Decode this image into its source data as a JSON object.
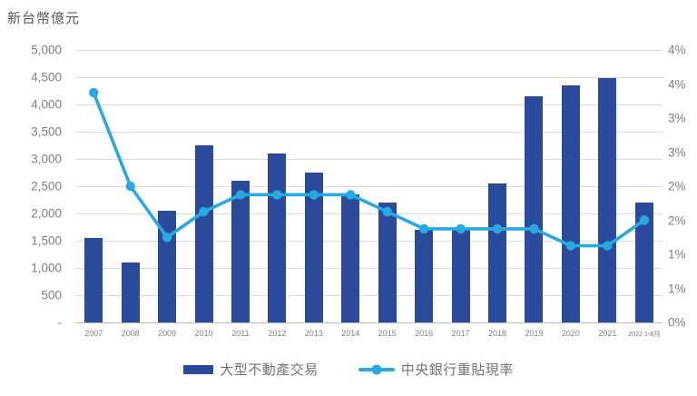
{
  "colors": {
    "bar": "#2a4b9b",
    "line": "#29a9e1",
    "gridline": "#d9d9d9",
    "axis_line": "#b7b7b7",
    "tick_text": "#7f7f7f",
    "title_text": "#595959"
  },
  "chart_data": {
    "type": "bar",
    "subtype": "bar+line combo, dual axis",
    "title_left": "新台幣億元",
    "categories": [
      "2007",
      "2008",
      "2009",
      "2010",
      "2011",
      "2012",
      "2013",
      "2014",
      "2015",
      "2016",
      "2017",
      "2018",
      "2019",
      "2020",
      "2021",
      "2022 1-8月"
    ],
    "series": [
      {
        "name": "大型不動產交易",
        "type": "bar",
        "axis": "left",
        "color": "#2a4b9b",
        "values": [
          1550,
          1100,
          2050,
          3250,
          2600,
          3100,
          2750,
          2350,
          2200,
          1700,
          1700,
          2550,
          4150,
          4350,
          4480,
          2200
        ]
      },
      {
        "name": "中央銀行重貼現率",
        "type": "line",
        "axis": "right",
        "color": "#29a9e1",
        "values": [
          3.375,
          2.0,
          1.25,
          1.625,
          1.875,
          1.875,
          1.875,
          1.875,
          1.625,
          1.375,
          1.375,
          1.375,
          1.375,
          1.125,
          1.125,
          1.5
        ]
      }
    ],
    "left_axis": {
      "min": 0,
      "max": 5000,
      "step": 500,
      "tick_labels_top_to_bottom": [
        "5,000",
        "4,500",
        "4,000",
        "3,500",
        "3,000",
        "2,500",
        "2,000",
        "1,500",
        "1,000",
        "500",
        "-"
      ]
    },
    "right_axis": {
      "min": 0,
      "max": 4,
      "step": 0.5,
      "tick_labels_top_to_bottom": [
        "4%",
        "4%",
        "3%",
        "3%",
        "2%",
        "2%",
        "1%",
        "1%",
        "0%"
      ]
    },
    "grid": true,
    "legend_position": "bottom"
  }
}
